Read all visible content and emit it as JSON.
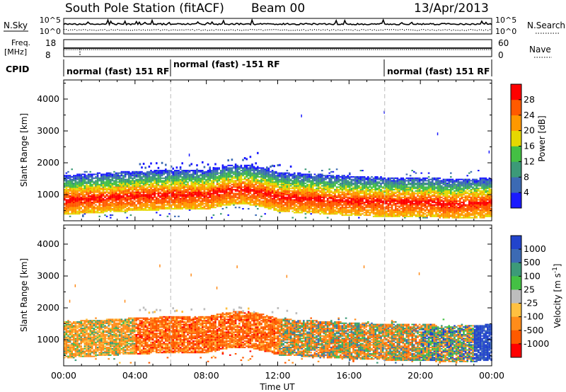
{
  "header": {
    "station": "South Pole Station (fitACF)",
    "beam": "Beam 00",
    "date": "13/Apr/2013"
  },
  "noise_panel": {
    "left_label": "N.Sky",
    "left_ticks": [
      "10^5",
      "10^0"
    ],
    "right_label": "N.Search",
    "right_ticks": [
      "10^5",
      "10^0"
    ]
  },
  "freq_panel": {
    "left_label_line1": "Freq.",
    "left_label_line2": "[MHz]",
    "left_ticks": [
      "18",
      "8"
    ],
    "right_label": "Nave",
    "right_ticks": [
      "60",
      "0"
    ]
  },
  "cpid": {
    "label": "CPID",
    "segments": [
      {
        "start_hour": 0,
        "end_hour": 6,
        "text": "normal (fast) 151 RF"
      },
      {
        "start_hour": 6,
        "end_hour": 18,
        "text": "normal (fast) -151 RF"
      },
      {
        "start_hour": 18,
        "end_hour": 24,
        "text": "normal (fast) 151 RF"
      }
    ]
  },
  "chart_data": [
    {
      "type": "heatmap",
      "name": "power",
      "ylabel": "Slant Range [km]",
      "ylim": [
        180,
        4600
      ],
      "yticks": [
        "1000",
        "2000",
        "3000",
        "4000"
      ],
      "colorbar_label": "Power [dB]",
      "colorbar_ticks": [
        "4",
        "8",
        "12",
        "16",
        "20",
        "24",
        "28"
      ],
      "colorbar_range": [
        0,
        32
      ],
      "colors": [
        "#1a1aff",
        "#3c6ab4",
        "#3c9a78",
        "#44c044",
        "#e6d800",
        "#ff9800",
        "#ff5a00",
        "#ff0000"
      ]
    },
    {
      "type": "heatmap",
      "name": "velocity",
      "ylabel": "Slant Range [km]",
      "ylim": [
        180,
        4600
      ],
      "yticks": [
        "1000",
        "2000",
        "3000",
        "4000"
      ],
      "colorbar_label": "Velocity [m s",
      "colorbar_label_exponent": "-1",
      "colorbar_label_tail": "]",
      "colorbar_ticks": [
        "1000",
        "500",
        "100",
        "25",
        "-25",
        "-100",
        "-500",
        "-1000"
      ],
      "colors": [
        "#2244cc",
        "#3c6ab4",
        "#3c9a78",
        "#44c044",
        "#bdbdbd",
        "#ffc040",
        "#ff8c1a",
        "#ff5a00",
        "#ff0000"
      ]
    }
  ],
  "xaxis": {
    "label": "Time UT",
    "ticks": [
      "00:00",
      "04:00",
      "08:00",
      "12:00",
      "16:00",
      "20:00",
      "00:00"
    ]
  }
}
